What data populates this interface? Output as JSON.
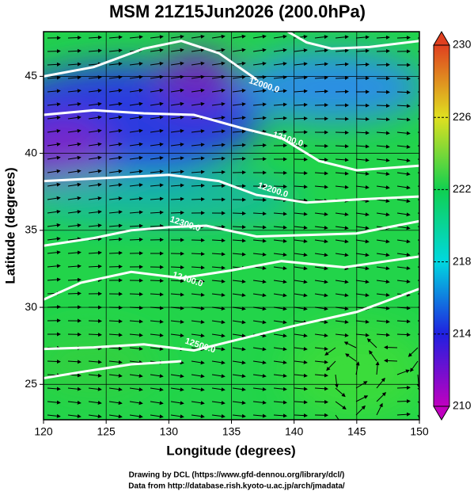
{
  "chart_data": {
    "type": "contour-map",
    "title": "MSM 21Z15Jun2026 (200.0hPa)",
    "x_label": "Longitude (degrees)",
    "y_label": "Latitude  (degrees)",
    "xlim": [
      120,
      150
    ],
    "ylim": [
      22.7,
      47.9
    ],
    "xticks": [
      120,
      125,
      130,
      135,
      140,
      145,
      150
    ],
    "yticks": [
      25,
      30,
      35,
      40,
      45
    ],
    "grid": true,
    "contour_color": "#ffffff",
    "contours": [
      {
        "label": "12000.0",
        "label_at": [
          137.6,
          44.4
        ],
        "lon": [
          120,
          124,
          128,
          131,
          134,
          137
        ],
        "lat": [
          45.0,
          45.6,
          46.8,
          47.3,
          46.5,
          44.8
        ]
      },
      {
        "lon": [
          139.5,
          141,
          143,
          146,
          150
        ],
        "lat": [
          47.9,
          47.2,
          46.8,
          46.9,
          47.3
        ]
      },
      {
        "label": "12100.0",
        "label_at": [
          139.5,
          40.9
        ],
        "lon": [
          120,
          124,
          128,
          132,
          136,
          139,
          142,
          145,
          150
        ],
        "lat": [
          42.5,
          42.8,
          42.6,
          42.5,
          41.6,
          41.0,
          39.5,
          38.9,
          39.2
        ]
      },
      {
        "label": "12200.0",
        "label_at": [
          138.3,
          37.6
        ],
        "lon": [
          120,
          125,
          130,
          134,
          137,
          141,
          145,
          150
        ],
        "lat": [
          38.2,
          38.4,
          38.6,
          38.2,
          37.3,
          36.8,
          37.0,
          37.2
        ]
      },
      {
        "label": "12300.0",
        "label_at": [
          131.3,
          35.4
        ],
        "lon": [
          120,
          124,
          127,
          130,
          133,
          137,
          141,
          145,
          150
        ],
        "lat": [
          34.0,
          34.5,
          35.0,
          35.2,
          35.3,
          34.6,
          34.7,
          34.8,
          35.6
        ]
      },
      {
        "label": "12400.0",
        "label_at": [
          131.5,
          31.8
        ],
        "lon": [
          120,
          123,
          127,
          131,
          135,
          139,
          144,
          150
        ],
        "lat": [
          30.5,
          31.6,
          32.3,
          31.9,
          32.4,
          33.0,
          32.6,
          33.3
        ]
      },
      {
        "label": "12500.0",
        "label_at": [
          132.5,
          27.5
        ],
        "lon": [
          120,
          124,
          128,
          132,
          136,
          140,
          145,
          150
        ],
        "lat": [
          27.3,
          27.4,
          27.6,
          27.2,
          28.0,
          28.8,
          29.7,
          31.2
        ]
      },
      {
        "lon": [
          120,
          123,
          127,
          131
        ],
        "lat": [
          25.4,
          25.8,
          26.3,
          26.5
        ]
      }
    ],
    "colorbar": {
      "lim": [
        210,
        230
      ],
      "ticks": [
        210,
        214,
        218,
        222,
        226,
        230
      ],
      "colors": [
        "#c000c0",
        "#2020e0",
        "#00d8e0",
        "#10d050",
        "#e0e020",
        "#e04020"
      ]
    },
    "credits": [
      "Drawing by DCL (https://www.gfd-dennou.org/library/dcl/)",
      "Data from http://database.rish.kyoto-u.ac.jp/arch/jmadata/"
    ]
  }
}
